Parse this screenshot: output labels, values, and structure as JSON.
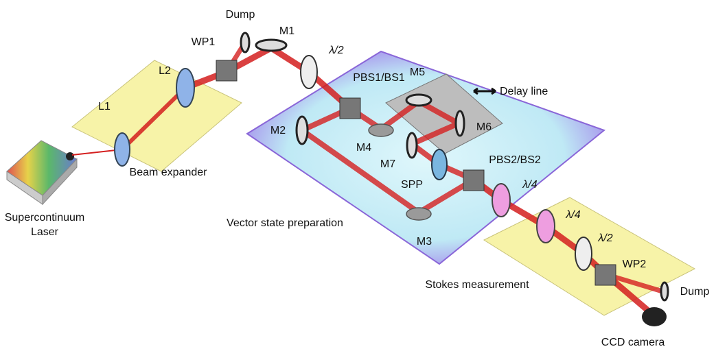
{
  "labels": [
    "Dump",
    "M1",
    "WP1",
    "L2",
    "L1",
    "λ/2",
    "PBS1/BS1",
    "M5",
    "Delay line",
    "M2",
    "M4",
    "M6",
    "M7",
    "PBS2/BS2",
    "SPP",
    "λ/4",
    "λ/4",
    "λ/2",
    "WP2",
    "Dump",
    "CCD camera",
    "Beam expander",
    "Supercontinuum",
    "Laser",
    "Vector state preparation",
    "M3",
    "Stokes measurement"
  ]
}
